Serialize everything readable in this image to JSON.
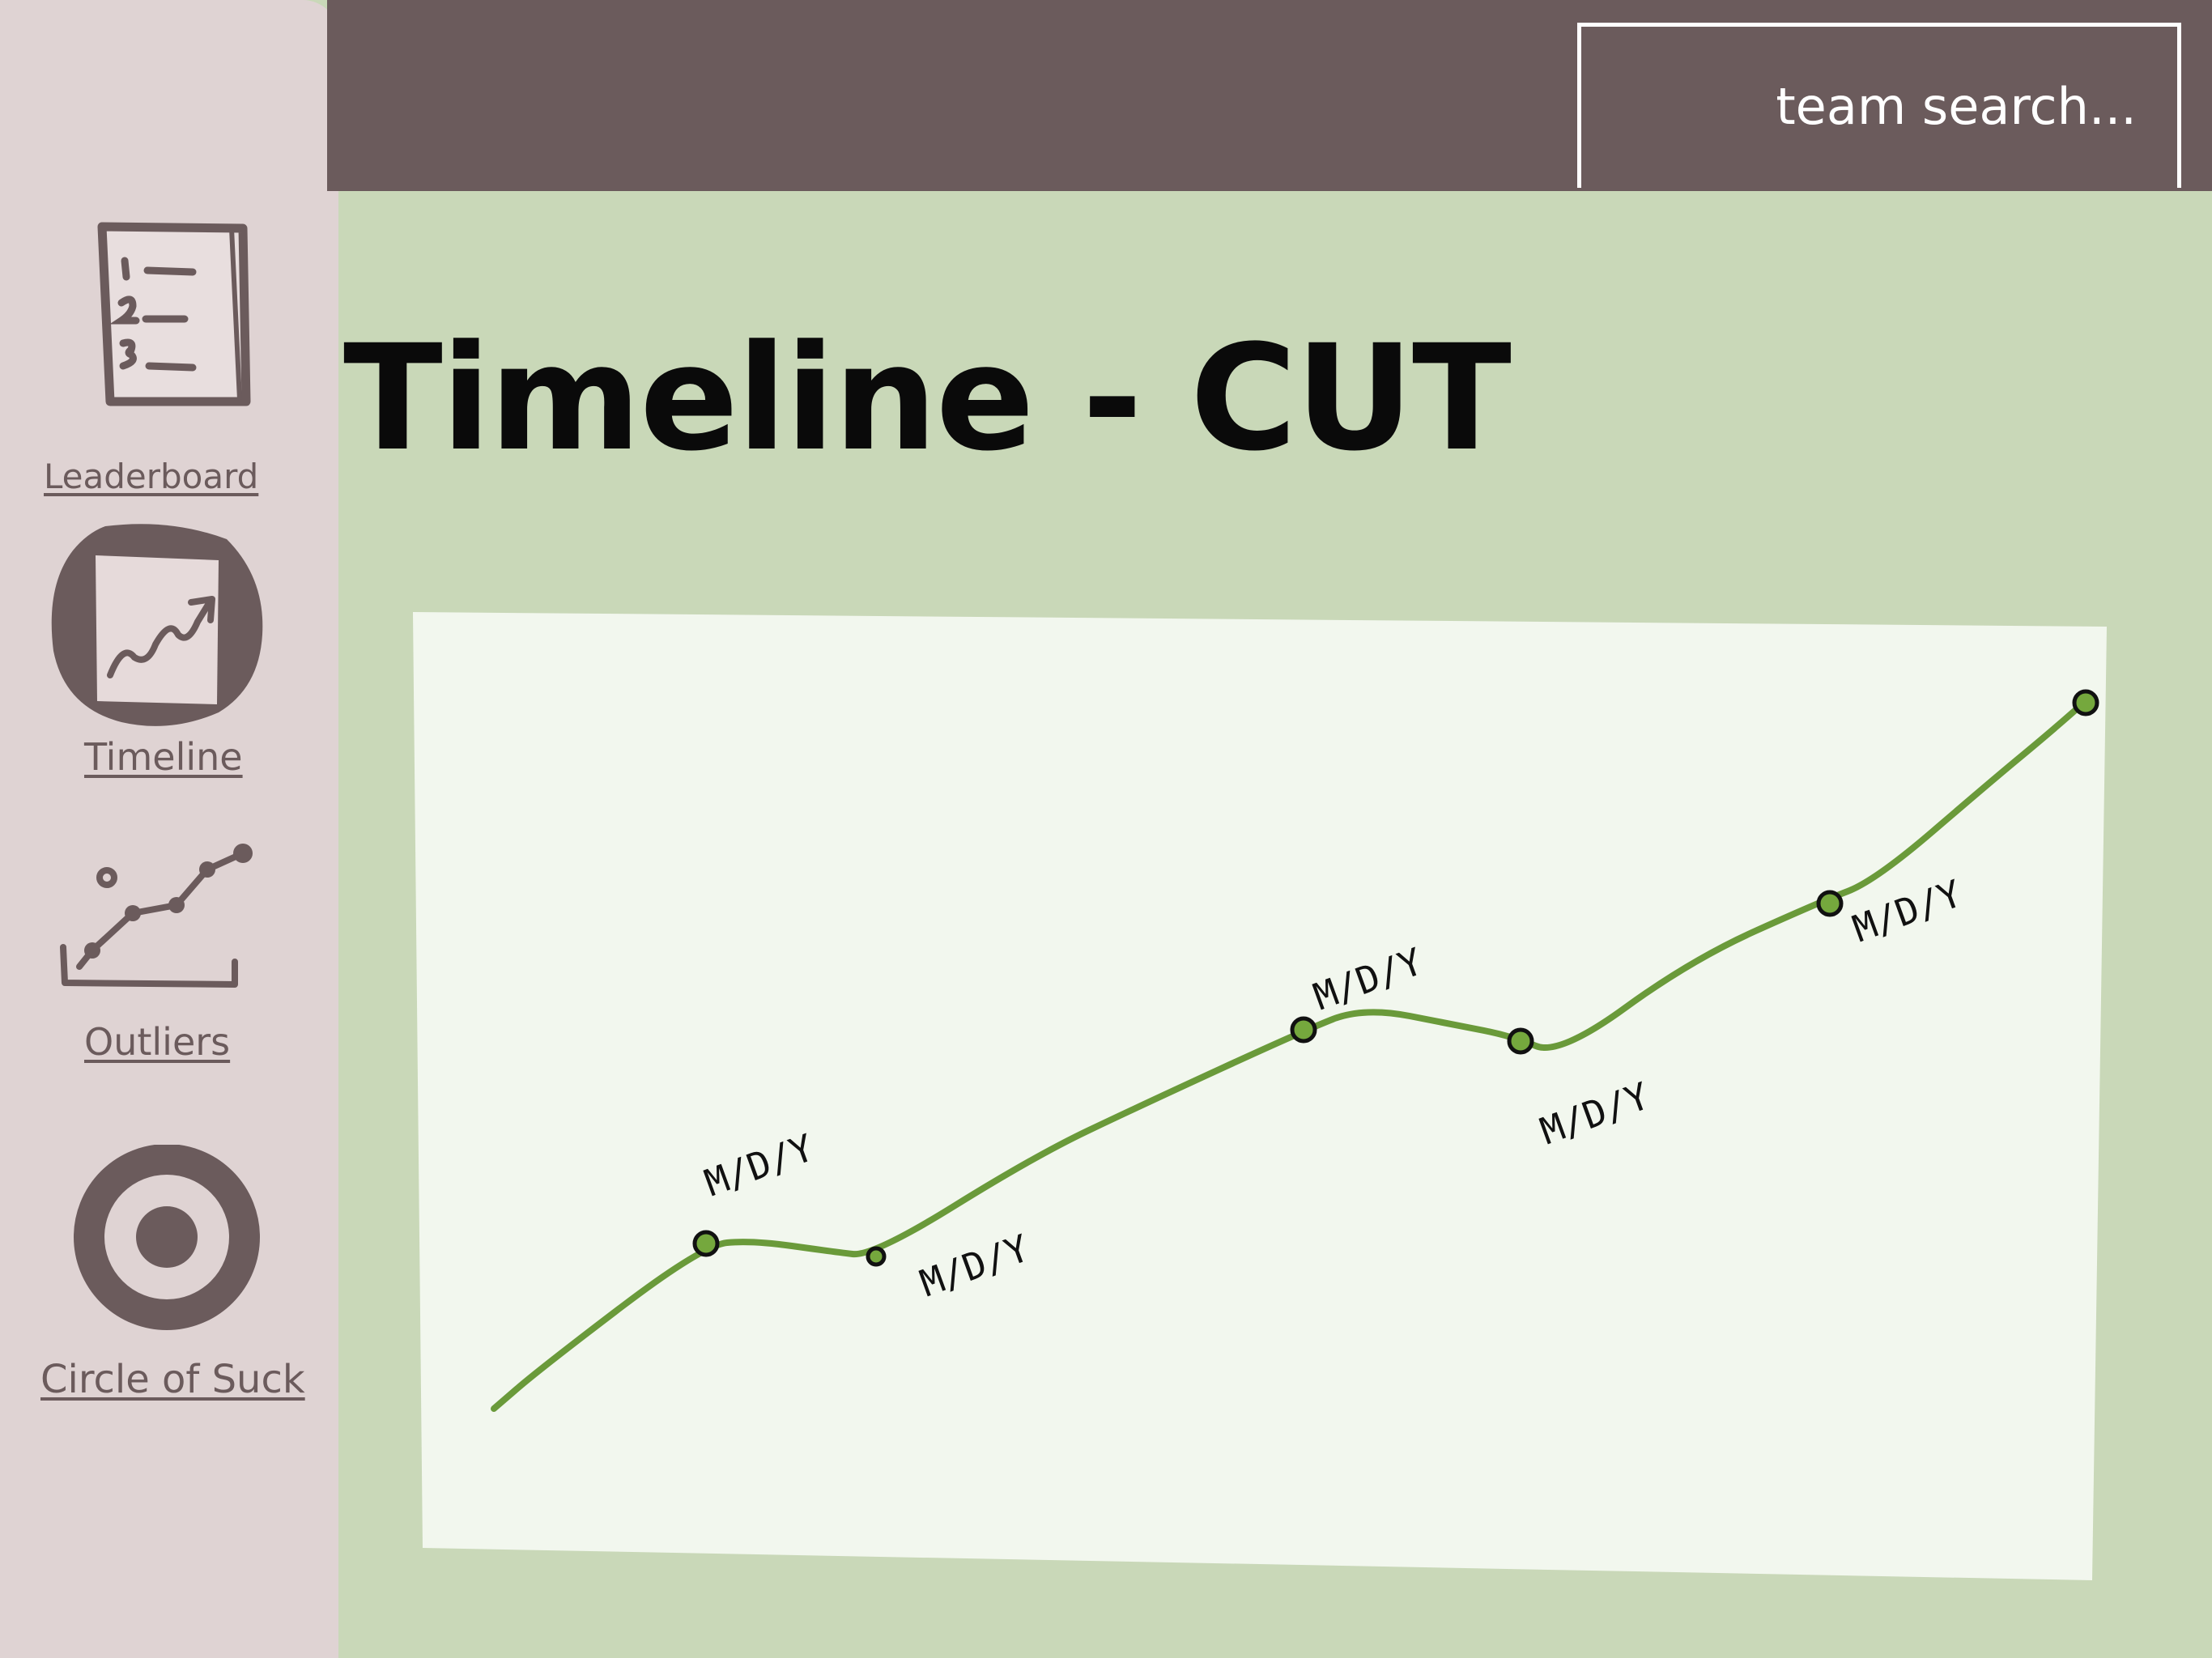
{
  "header": {
    "search": {
      "text": "team search..."
    }
  },
  "sidebar": {
    "items": [
      {
        "label": "Leaderboard",
        "icon": "numbered-list-icon"
      },
      {
        "label": "Timeline",
        "icon": "trend-chart-icon",
        "active": true
      },
      {
        "label": "Outliers",
        "icon": "scatter-plot-icon"
      },
      {
        "label": "Circle of Suck",
        "icon": "target-icon"
      }
    ]
  },
  "main": {
    "title": "Timeline - CUT"
  },
  "colors": {
    "topbar": "#6b5b5c",
    "sidebar": "#dfd3d3",
    "content_bg": "#c9d8b8",
    "chart_bg": "#f2f7ee",
    "line": "#6a9a3a",
    "marker": "#75a83d"
  },
  "chart_data": {
    "type": "line",
    "title": "",
    "xlabel": "",
    "ylabel": "",
    "grid": false,
    "legend": "none",
    "point_label": "M/D/Y",
    "x": [
      "M/D/Y",
      "M/D/Y",
      "M/D/Y",
      "M/D/Y",
      "M/D/Y"
    ],
    "trend_line": true,
    "markers": 7
  }
}
